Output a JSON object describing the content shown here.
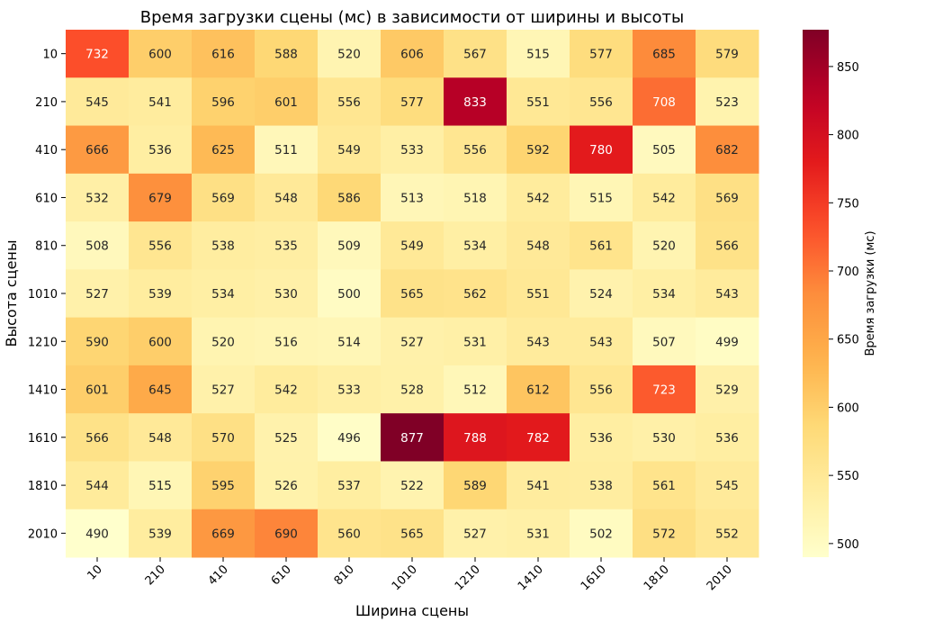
{
  "chart_data": {
    "type": "heatmap",
    "title": "Время загрузки сцены (мс) в зависимости от ширины и высоты",
    "xlabel": "Ширина сцены",
    "ylabel": "Высота сцены",
    "x_categories": [
      "10",
      "210",
      "410",
      "610",
      "810",
      "1010",
      "1210",
      "1410",
      "1610",
      "1810",
      "2010"
    ],
    "y_categories": [
      "10",
      "210",
      "410",
      "610",
      "810",
      "1010",
      "1210",
      "1410",
      "1610",
      "1810",
      "2010"
    ],
    "values": [
      [
        732,
        600,
        616,
        588,
        520,
        606,
        567,
        515,
        577,
        685,
        579
      ],
      [
        545,
        541,
        596,
        601,
        556,
        577,
        833,
        551,
        556,
        708,
        523
      ],
      [
        666,
        536,
        625,
        511,
        549,
        533,
        556,
        592,
        780,
        505,
        682
      ],
      [
        532,
        679,
        569,
        548,
        586,
        513,
        518,
        542,
        515,
        542,
        569
      ],
      [
        508,
        556,
        538,
        535,
        509,
        549,
        534,
        548,
        561,
        520,
        566
      ],
      [
        527,
        539,
        534,
        530,
        500,
        565,
        562,
        551,
        524,
        534,
        543
      ],
      [
        590,
        600,
        520,
        516,
        514,
        527,
        531,
        543,
        543,
        507,
        499
      ],
      [
        601,
        645,
        527,
        542,
        533,
        528,
        512,
        612,
        556,
        723,
        529
      ],
      [
        566,
        548,
        570,
        525,
        496,
        877,
        788,
        782,
        536,
        530,
        536
      ],
      [
        544,
        515,
        595,
        526,
        537,
        522,
        589,
        541,
        538,
        561,
        545
      ],
      [
        490,
        539,
        669,
        690,
        560,
        565,
        527,
        531,
        502,
        572,
        552
      ]
    ],
    "colorbar": {
      "label": "Время загрузки (мс)",
      "range": [
        490,
        877
      ],
      "ticks": [
        500,
        550,
        600,
        650,
        700,
        750,
        800,
        850
      ],
      "colormap": "YlOrRd"
    },
    "annotations": true,
    "grid": false
  }
}
